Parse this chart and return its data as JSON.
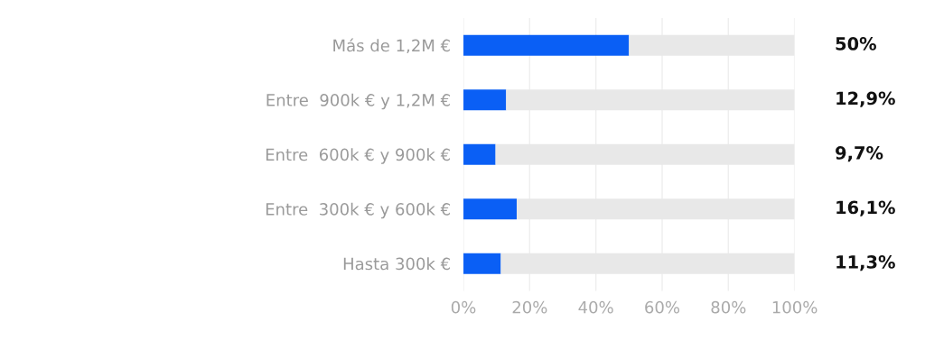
{
  "chart_data": {
    "type": "bar",
    "orientation": "horizontal",
    "stacked": true,
    "categories": [
      "Más de 1,2M €",
      "Entre  900k € y 1,2M €",
      "Entre  600k € y 900k €",
      "Entre  300k € y 600k €",
      "Hasta 300k €"
    ],
    "series": [
      {
        "color": "#0a5ff5",
        "values": [
          50,
          12.9,
          9.7,
          16.1,
          11.3
        ]
      },
      {
        "color": "#e8e8e8",
        "values": [
          50,
          87.1,
          90.3,
          83.9,
          88.7
        ]
      }
    ],
    "value_labels": [
      "50%",
      "12,9%",
      "9,7%",
      "16,1%",
      "11,3%"
    ],
    "xlim": [
      0,
      100
    ],
    "xticks": [
      {
        "value": 0,
        "label": "0%"
      },
      {
        "value": 20,
        "label": "20%"
      },
      {
        "value": 40,
        "label": "40%"
      },
      {
        "value": 60,
        "label": "60%"
      },
      {
        "value": 80,
        "label": "80%"
      },
      {
        "value": 100,
        "label": "100%"
      }
    ],
    "grid": "x",
    "legend": false
  }
}
